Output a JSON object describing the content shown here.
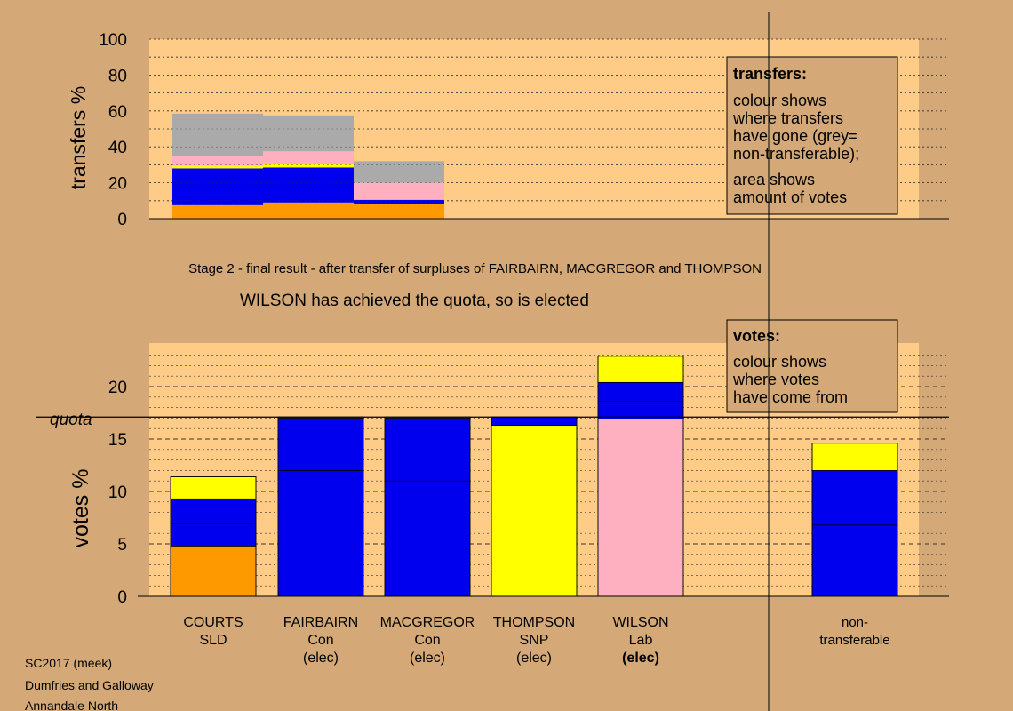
{
  "colors": {
    "background": "#D4A977",
    "plot_bg": "#FFCC88",
    "orange": "#FF9900",
    "blue": "#0000EE",
    "yellow": "#FFFF00",
    "pink": "#FFB0C0",
    "grey": "#AAAAAA",
    "box_bg": "#D4A977"
  },
  "stage_title": "Stage 2 - final result - after transfer of surpluses of FAIRBAIRN, MACGREGOR and THOMPSON",
  "status_text": "WILSON has achieved the quota, so is elected",
  "footer": [
    "SC2017 (meek)",
    "Dumfries and Galloway",
    "Annandale North"
  ],
  "transfers_box": {
    "heading": "transfers:",
    "lines1": [
      "colour shows",
      "where transfers",
      "have gone (grey=",
      "non-transferable);"
    ],
    "lines2": [
      "area shows",
      "amount of votes"
    ]
  },
  "votes_box": {
    "heading": "votes:",
    "lines": [
      "colour shows",
      "where votes",
      "have come from"
    ]
  },
  "chart_data": [
    {
      "type": "bar",
      "name": "transfers",
      "ylabel": "transfers %",
      "ylim": [
        0,
        100
      ],
      "yticks": [
        0,
        20,
        40,
        60,
        80,
        100
      ],
      "bars": [
        {
          "x0": 0.2,
          "x1": 1.05,
          "stack": [
            {
              "color": "orange",
              "value": 7.5
            },
            {
              "color": "blue",
              "value": 20.5
            },
            {
              "color": "yellow",
              "value": 1.5
            },
            {
              "color": "pink",
              "value": 5.5
            },
            {
              "color": "grey",
              "value": 23.5
            }
          ]
        },
        {
          "x0": 1.05,
          "x1": 1.9,
          "stack": [
            {
              "color": "orange",
              "value": 9
            },
            {
              "color": "blue",
              "value": 19.5
            },
            {
              "color": "yellow",
              "value": 2
            },
            {
              "color": "pink",
              "value": 7
            },
            {
              "color": "grey",
              "value": 20
            }
          ]
        },
        {
          "x0": 1.9,
          "x1": 2.75,
          "stack": [
            {
              "color": "orange",
              "value": 8
            },
            {
              "color": "blue",
              "value": 2.5
            },
            {
              "color": "pink",
              "value": 9.5
            },
            {
              "color": "grey",
              "value": 12
            }
          ]
        }
      ]
    },
    {
      "type": "bar",
      "name": "votes",
      "ylabel": "votes %",
      "quota_label": "quota",
      "quota": 17.1,
      "ylim": [
        0,
        24
      ],
      "yticks": [
        0,
        5,
        10,
        15,
        20
      ],
      "categories": [
        {
          "lines": [
            "COURTS",
            "SLD"
          ],
          "bold": false
        },
        {
          "lines": [
            "FAIRBAIRN",
            "Con",
            "(elec)"
          ],
          "bold": false
        },
        {
          "lines": [
            "MACGREGOR",
            "Con",
            "(elec)"
          ],
          "bold": false
        },
        {
          "lines": [
            "THOMPSON",
            "SNP",
            "(elec)"
          ],
          "bold": false
        },
        {
          "lines": [
            "WILSON",
            "Lab",
            "(elec)"
          ],
          "bold": true
        },
        {
          "lines": [
            "non-",
            "transferable"
          ],
          "bold": false
        }
      ],
      "bars": [
        {
          "slot": 0,
          "stack": [
            {
              "color": "orange",
              "value": 4.8
            },
            {
              "color": "blue",
              "value": 2.1
            },
            {
              "color": "blue",
              "value": 2.4
            },
            {
              "color": "yellow",
              "value": 2.1
            }
          ]
        },
        {
          "slot": 1,
          "stack": [
            {
              "color": "blue",
              "value": 12.0
            },
            {
              "color": "blue",
              "value": 5.0
            },
            {
              "color": "yellow",
              "value": 0.1
            }
          ]
        },
        {
          "slot": 2,
          "stack": [
            {
              "color": "blue",
              "value": 11.0
            },
            {
              "color": "blue",
              "value": 6.0
            },
            {
              "color": "yellow",
              "value": 0.1
            }
          ]
        },
        {
          "slot": 3,
          "stack": [
            {
              "color": "yellow",
              "value": 16.3
            },
            {
              "color": "blue",
              "value": 0.8
            }
          ]
        },
        {
          "slot": 4,
          "stack": [
            {
              "color": "pink",
              "value": 16.9
            },
            {
              "color": "blue",
              "value": 1.7
            },
            {
              "color": "blue",
              "value": 1.8
            },
            {
              "color": "yellow",
              "value": 2.5
            }
          ]
        },
        {
          "slot": 5,
          "stack": [
            {
              "color": "blue",
              "value": 6.8
            },
            {
              "color": "blue",
              "value": 5.2
            },
            {
              "color": "yellow",
              "value": 2.6
            }
          ]
        }
      ]
    }
  ]
}
